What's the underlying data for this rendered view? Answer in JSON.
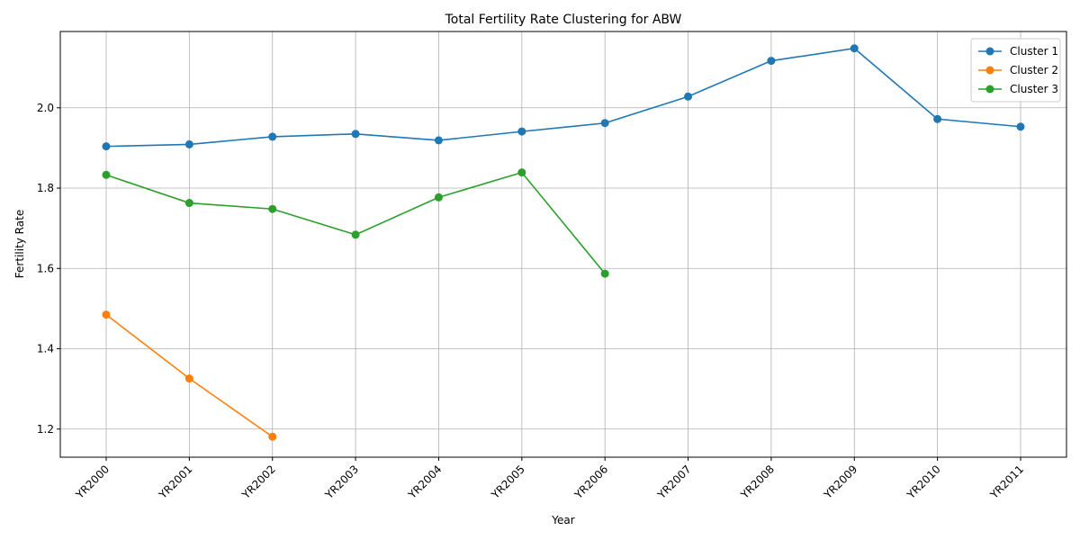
{
  "chart_data": {
    "type": "line",
    "title": "Total Fertility Rate Clustering for ABW",
    "xlabel": "Year",
    "ylabel": "Fertility Rate",
    "categories": [
      "YR2000",
      "YR2001",
      "YR2002",
      "YR2003",
      "YR2004",
      "YR2005",
      "YR2006",
      "YR2007",
      "YR2008",
      "YR2009",
      "YR2010",
      "YR2011"
    ],
    "yticks": [
      1.2,
      1.4,
      1.6,
      1.8,
      2.0
    ],
    "ylim": [
      1.13,
      2.19
    ],
    "grid": true,
    "legend_position": "top-right",
    "series": [
      {
        "name": "Cluster 1",
        "color": "#1f77b4",
        "values": [
          1.904,
          1.909,
          1.928,
          1.935,
          1.919,
          1.941,
          1.962,
          2.028,
          2.117,
          2.148,
          1.972,
          1.953
        ]
      },
      {
        "name": "Cluster 2",
        "color": "#ff7f0e",
        "values": [
          1.485,
          1.326,
          1.181,
          null,
          null,
          null,
          null,
          null,
          null,
          null,
          null,
          null
        ]
      },
      {
        "name": "Cluster 3",
        "color": "#2ca02c",
        "values": [
          1.833,
          1.763,
          1.748,
          1.684,
          1.777,
          1.839,
          1.587,
          null,
          null,
          null,
          null,
          null
        ]
      }
    ]
  }
}
